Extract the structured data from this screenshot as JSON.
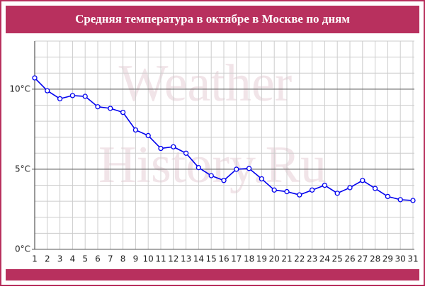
{
  "chart_data": {
    "type": "line",
    "title": "Средняя температура в октябре в Москве по дням",
    "watermark": [
      "Weather",
      "History.Ru"
    ],
    "x": [
      1,
      2,
      3,
      4,
      5,
      6,
      7,
      8,
      9,
      10,
      11,
      12,
      13,
      14,
      15,
      16,
      17,
      18,
      19,
      20,
      21,
      22,
      23,
      24,
      25,
      26,
      27,
      28,
      29,
      30,
      31
    ],
    "series": [
      {
        "name": "Средняя температура",
        "color": "#0000ee",
        "values": [
          10.7,
          9.9,
          9.4,
          9.6,
          9.55,
          8.9,
          8.8,
          8.55,
          7.45,
          7.1,
          6.3,
          6.4,
          6.0,
          5.1,
          4.6,
          4.3,
          5.0,
          5.05,
          4.4,
          3.7,
          3.6,
          3.4,
          3.7,
          4.0,
          3.5,
          3.85,
          4.3,
          3.8,
          3.3,
          3.1,
          3.05
        ]
      }
    ],
    "xlim": [
      1,
      31
    ],
    "xticks": [
      1,
      2,
      3,
      4,
      5,
      6,
      7,
      8,
      9,
      10,
      11,
      12,
      13,
      14,
      15,
      16,
      17,
      18,
      19,
      20,
      21,
      22,
      23,
      24,
      25,
      26,
      27,
      28,
      29,
      30,
      31
    ],
    "ylim": [
      0,
      13
    ],
    "yticks": [
      {
        "value": 0,
        "label": "0°C"
      },
      {
        "value": 5,
        "label": "5°C"
      },
      {
        "value": 10,
        "label": "10°C"
      }
    ],
    "grid": true
  }
}
